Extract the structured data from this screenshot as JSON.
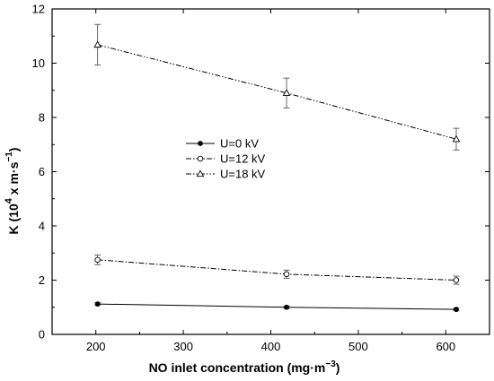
{
  "chart_data": {
    "type": "line",
    "xlabel": "NO inlet concentration (mg·m",
    "xlabel_sup": "−3",
    "xlabel_end": ")",
    "ylabel": "K (10",
    "ylabel_sup": "4",
    "ylabel_mid": " x m·s",
    "ylabel_sup2": "−1",
    "ylabel_end": ")",
    "xlim": [
      150,
      650
    ],
    "ylim": [
      0,
      12
    ],
    "xticks": [
      200,
      300,
      400,
      500,
      600
    ],
    "yticks": [
      0,
      2,
      4,
      6,
      8,
      10,
      12
    ],
    "grid": false,
    "legend_position": "center-left",
    "series": [
      {
        "name": "U=0 kV",
        "marker": "filled-circle",
        "line": "solid",
        "x": [
          202,
          418,
          612
        ],
        "y": [
          1.12,
          1.0,
          0.92
        ],
        "err": [
          0.05,
          0.05,
          0.05
        ]
      },
      {
        "name": "U=12 kV",
        "marker": "open-circle",
        "line": "dash-dot",
        "x": [
          202,
          418,
          612
        ],
        "y": [
          2.75,
          2.22,
          2.0
        ],
        "err": [
          0.18,
          0.15,
          0.15
        ]
      },
      {
        "name": "U=18 kV",
        "marker": "open-triangle",
        "line": "dash-dot-dot",
        "x": [
          202,
          418,
          612
        ],
        "y": [
          10.68,
          8.9,
          7.2
        ],
        "err": [
          0.75,
          0.55,
          0.4
        ]
      }
    ]
  }
}
